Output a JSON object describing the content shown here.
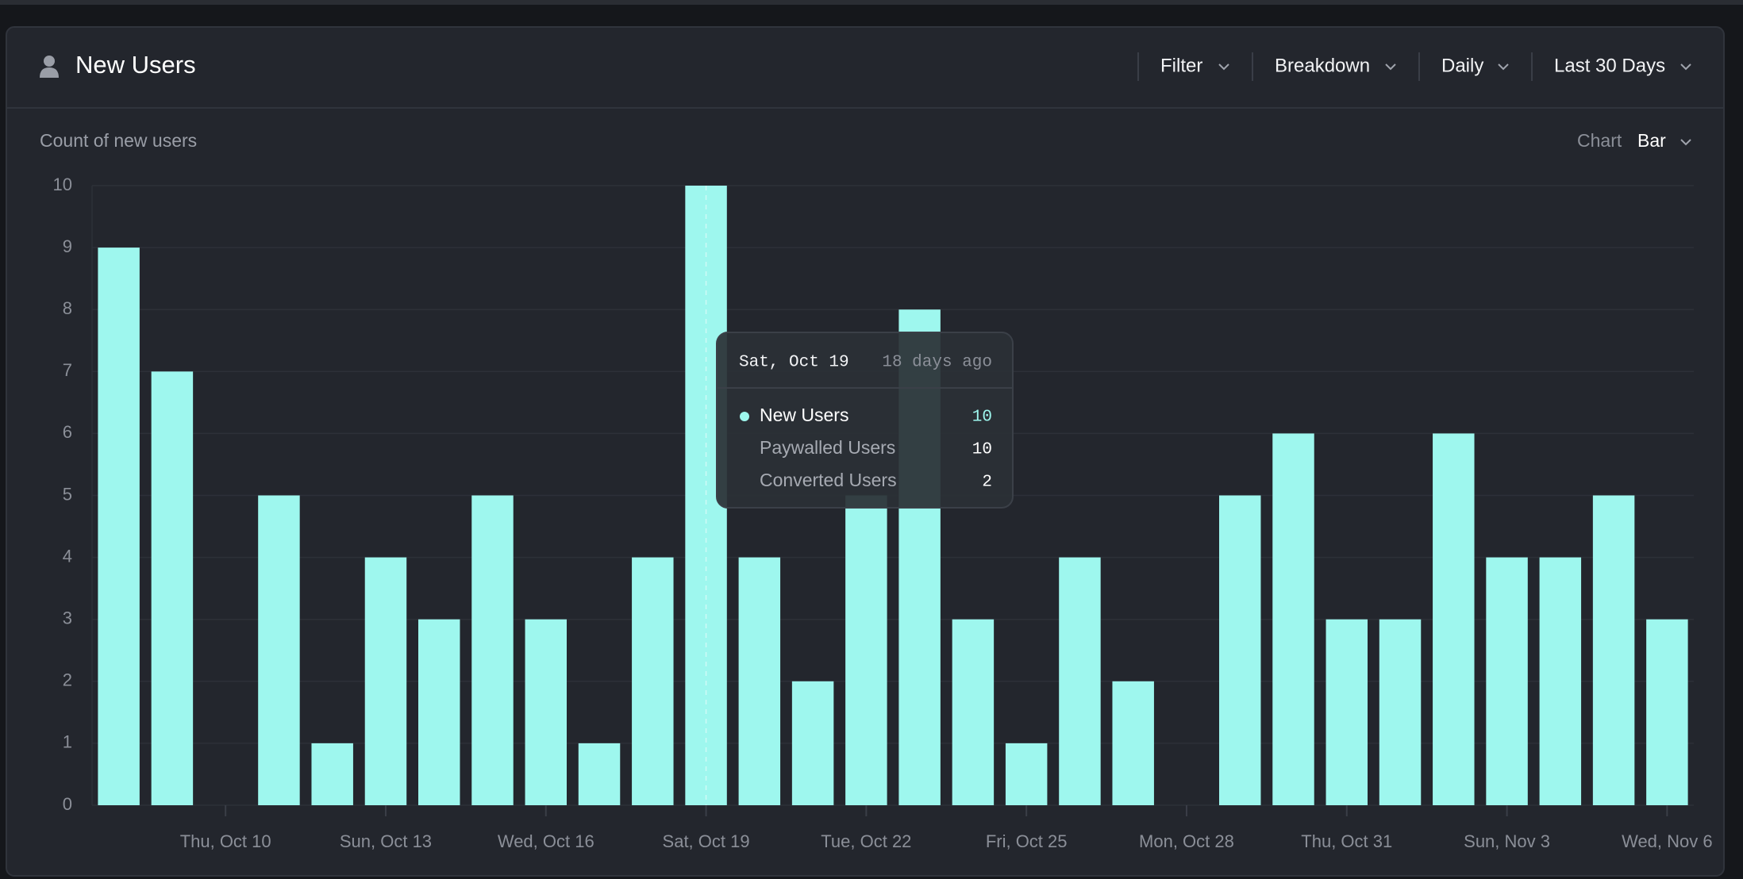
{
  "header": {
    "title": "New Users",
    "controls": [
      "Filter",
      "Breakdown",
      "Daily",
      "Last 30 Days"
    ]
  },
  "chart_data": {
    "type": "bar",
    "title": "Count of new users",
    "chart_type_label": "Chart",
    "chart_type_value": "Bar",
    "categories": [
      null,
      null,
      "Thu, Oct 10",
      null,
      null,
      "Sun, Oct 13",
      null,
      null,
      "Wed, Oct 16",
      null,
      null,
      "Sat, Oct 19",
      null,
      null,
      "Tue, Oct 22",
      null,
      null,
      "Fri, Oct 25",
      null,
      null,
      "Mon, Oct 28",
      null,
      null,
      "Thu, Oct 31",
      null,
      null,
      "Sun, Nov 3",
      null,
      null,
      "Wed, Nov 6"
    ],
    "series": [
      {
        "name": "New Users",
        "color": "#9ef7ee",
        "values": [
          9,
          7,
          0,
          5,
          1,
          4,
          3,
          5,
          3,
          1,
          4,
          10,
          4,
          2,
          5,
          8,
          3,
          1,
          4,
          2,
          0,
          5,
          6,
          3,
          3,
          6,
          4,
          4,
          5,
          3
        ]
      }
    ],
    "ylim": [
      0,
      10
    ],
    "yticks": [
      0,
      1,
      2,
      3,
      4,
      5,
      6,
      7,
      8,
      9,
      10
    ],
    "grid": true,
    "tooltip": {
      "title": "Sat, Oct 19",
      "subtitle": "18 days ago",
      "items": [
        {
          "name": "New Users",
          "value": "10"
        },
        {
          "name": "Paywalled Users",
          "value": "10"
        },
        {
          "name": "Converted Users",
          "value": "2"
        }
      ]
    }
  }
}
